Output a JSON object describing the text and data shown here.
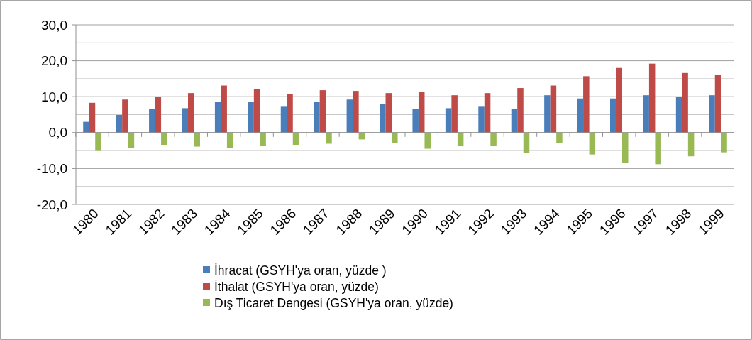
{
  "chart_data": {
    "type": "bar",
    "categories": [
      "1980",
      "1981",
      "1982",
      "1983",
      "1984",
      "1985",
      "1986",
      "1987",
      "1988",
      "1989",
      "1990",
      "1991",
      "1992",
      "1993",
      "1994",
      "1995",
      "1996",
      "1997",
      "1998",
      "1999"
    ],
    "series": [
      {
        "name": "İhracat (GSYH'ya oran, yüzde )",
        "color": "#4a7ebb",
        "values": [
          3.0,
          4.9,
          6.5,
          6.8,
          8.6,
          8.6,
          7.2,
          8.6,
          9.2,
          8.0,
          6.5,
          6.8,
          7.2,
          6.5,
          10.4,
          9.5,
          9.5,
          10.4,
          9.9,
          10.4
        ]
      },
      {
        "name": "İthalat (GSYH'ya oran, yüzde)",
        "color": "#be4b48",
        "values": [
          8.3,
          9.2,
          10.0,
          11.0,
          13.1,
          12.2,
          10.7,
          11.8,
          11.6,
          11.0,
          11.3,
          10.4,
          11.0,
          12.4,
          13.1,
          15.7,
          18.0,
          19.2,
          16.6,
          16.0
        ]
      },
      {
        "name": "Dış Ticaret Dengesi (GSYH'ya oran, yüzde)",
        "color": "#98b954",
        "values": [
          -5.1,
          -4.3,
          -3.4,
          -3.9,
          -4.3,
          -3.7,
          -3.4,
          -3.1,
          -1.9,
          -2.8,
          -4.5,
          -3.7,
          -3.7,
          -5.7,
          -2.8,
          -6.1,
          -8.4,
          -8.8,
          -6.6,
          -5.5
        ]
      }
    ],
    "ylim": [
      -20,
      30
    ],
    "yticks": [
      {
        "value": -20,
        "label": "-20,0"
      },
      {
        "value": -15,
        "label": null
      },
      {
        "value": -10,
        "label": "-10,0"
      },
      {
        "value": -5,
        "label": null
      },
      {
        "value": 0,
        "label": "0,0"
      },
      {
        "value": 5,
        "label": null
      },
      {
        "value": 10,
        "label": "10,0"
      },
      {
        "value": 15,
        "label": null
      },
      {
        "value": 20,
        "label": "20,0"
      },
      {
        "value": 25,
        "label": null
      },
      {
        "value": 30,
        "label": "30,0"
      }
    ],
    "grid": "y",
    "legend": "bottom"
  }
}
